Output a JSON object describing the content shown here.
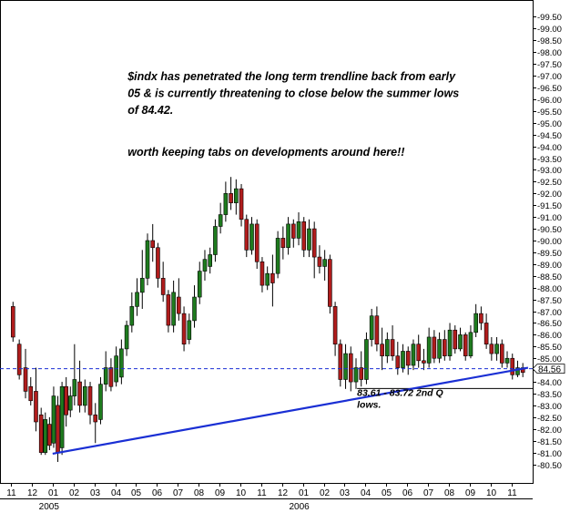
{
  "chart_data": {
    "type": "candlestick",
    "title": "",
    "xlabel": "",
    "ylabel": "",
    "ylim": [
      80.25,
      99.75
    ],
    "y_tick_step": 0.5,
    "y_axis_side": "right",
    "grid": false,
    "colors": {
      "up_candle": "#1e7b1e",
      "down_candle": "#b01c1c",
      "trendline": "#1a2fd4",
      "current_level_line": "#1a2fd4",
      "support_line": "#000000",
      "current_value_marker": "#000000"
    },
    "month_labels": [
      "11",
      "12",
      "01",
      "02",
      "03",
      "04",
      "05",
      "06",
      "07",
      "08",
      "09",
      "10",
      "11",
      "12",
      "01",
      "02",
      "03",
      "04",
      "05",
      "06",
      "07",
      "08",
      "09",
      "10",
      "11"
    ],
    "year_labels": [
      {
        "label": "2005",
        "month_index": 2
      },
      {
        "label": "2006",
        "month_index": 14
      }
    ],
    "current_value": 84.56,
    "current_value_label": "84.56",
    "support_level": 83.72,
    "trendline": {
      "start": {
        "month_index": 2.0,
        "value": 80.95
      },
      "end": {
        "month_index": 24.8,
        "value": 84.6
      }
    },
    "annotations": [
      {
        "lines": [
          "$indx has penetrated the long term trendline back from early",
          "05 & is currently threatening to close below the summer lows",
          "of 84.42."
        ],
        "anchor": {
          "month_index": 5.6,
          "value": 96.8
        }
      },
      {
        "lines": [
          "worth keeping tabs on developments around here!!"
        ],
        "anchor": {
          "month_index": 5.6,
          "value": 93.6
        }
      },
      {
        "lines": [
          "83.61 - 83.72  2nd Q",
          "lows."
        ],
        "anchor": {
          "month_index": 16.6,
          "value": 83.4
        },
        "size": "small"
      }
    ],
    "candles": [
      {
        "m": 0.1,
        "o": 87.2,
        "h": 87.4,
        "c": 85.9,
        "l": 85.7
      },
      {
        "m": 0.4,
        "o": 85.6,
        "h": 85.8,
        "c": 84.3,
        "l": 84.1
      },
      {
        "m": 0.7,
        "o": 84.6,
        "h": 85.4,
        "c": 83.6,
        "l": 83.3
      },
      {
        "m": 0.95,
        "o": 83.8,
        "h": 84.2,
        "c": 83.2,
        "l": 83.0
      },
      {
        "m": 1.2,
        "o": 83.6,
        "h": 84.6,
        "c": 82.3,
        "l": 81.9
      },
      {
        "m": 1.45,
        "o": 82.6,
        "h": 82.9,
        "c": 81.0,
        "l": 80.9
      },
      {
        "m": 1.65,
        "o": 81.0,
        "h": 82.7,
        "c": 82.4,
        "l": 80.9
      },
      {
        "m": 1.85,
        "o": 82.2,
        "h": 82.5,
        "c": 81.3,
        "l": 81.1
      },
      {
        "m": 2.05,
        "o": 81.4,
        "h": 83.8,
        "c": 83.4,
        "l": 81.2
      },
      {
        "m": 2.25,
        "o": 83.0,
        "h": 83.4,
        "c": 81.0,
        "l": 80.6
      },
      {
        "m": 2.45,
        "o": 81.2,
        "h": 84.0,
        "c": 83.8,
        "l": 80.9
      },
      {
        "m": 2.65,
        "o": 83.8,
        "h": 84.2,
        "c": 82.6,
        "l": 82.1
      },
      {
        "m": 2.85,
        "o": 82.8,
        "h": 83.8,
        "c": 83.4,
        "l": 82.5
      },
      {
        "m": 3.05,
        "o": 83.4,
        "h": 85.6,
        "c": 84.1,
        "l": 83.0
      },
      {
        "m": 3.3,
        "o": 84.0,
        "h": 84.9,
        "c": 83.0,
        "l": 82.7
      },
      {
        "m": 3.55,
        "o": 83.0,
        "h": 84.1,
        "c": 83.8,
        "l": 82.7
      },
      {
        "m": 3.8,
        "o": 83.8,
        "h": 84.0,
        "c": 82.6,
        "l": 82.2
      },
      {
        "m": 4.05,
        "o": 82.6,
        "h": 83.1,
        "c": 82.3,
        "l": 81.4
      },
      {
        "m": 4.3,
        "o": 82.4,
        "h": 84.2,
        "c": 83.9,
        "l": 82.2
      },
      {
        "m": 4.55,
        "o": 83.9,
        "h": 85.3,
        "c": 84.6,
        "l": 83.6
      },
      {
        "m": 4.8,
        "o": 84.6,
        "h": 85.0,
        "c": 83.8,
        "l": 83.6
      },
      {
        "m": 5.05,
        "o": 84.0,
        "h": 85.5,
        "c": 85.1,
        "l": 83.8
      },
      {
        "m": 5.3,
        "o": 84.2,
        "h": 85.8,
        "c": 85.4,
        "l": 83.9
      },
      {
        "m": 5.55,
        "o": 85.4,
        "h": 86.6,
        "c": 86.4,
        "l": 85.1
      },
      {
        "m": 5.8,
        "o": 86.4,
        "h": 87.8,
        "c": 87.2,
        "l": 86.1
      },
      {
        "m": 6.05,
        "o": 87.2,
        "h": 88.4,
        "c": 87.8,
        "l": 86.8
      },
      {
        "m": 6.3,
        "o": 87.8,
        "h": 89.6,
        "c": 88.4,
        "l": 87.1
      },
      {
        "m": 6.55,
        "o": 88.4,
        "h": 90.3,
        "c": 90.0,
        "l": 88.1
      },
      {
        "m": 6.8,
        "o": 90.0,
        "h": 90.7,
        "c": 89.7,
        "l": 89.1
      },
      {
        "m": 7.05,
        "o": 89.7,
        "h": 89.9,
        "c": 88.4,
        "l": 88.0
      },
      {
        "m": 7.3,
        "o": 88.4,
        "h": 89.1,
        "c": 87.7,
        "l": 87.4
      },
      {
        "m": 7.55,
        "o": 87.7,
        "h": 87.9,
        "c": 86.4,
        "l": 86.1
      },
      {
        "m": 7.8,
        "o": 86.4,
        "h": 88.3,
        "c": 87.8,
        "l": 86.1
      },
      {
        "m": 8.05,
        "o": 87.6,
        "h": 88.4,
        "c": 86.9,
        "l": 86.6
      },
      {
        "m": 8.3,
        "o": 86.9,
        "h": 87.2,
        "c": 85.6,
        "l": 85.3
      },
      {
        "m": 8.55,
        "o": 85.8,
        "h": 86.9,
        "c": 86.6,
        "l": 85.6
      },
      {
        "m": 8.8,
        "o": 86.6,
        "h": 88.1,
        "c": 87.6,
        "l": 86.3
      },
      {
        "m": 9.05,
        "o": 87.6,
        "h": 89.1,
        "c": 88.7,
        "l": 87.3
      },
      {
        "m": 9.3,
        "o": 88.7,
        "h": 89.6,
        "c": 89.2,
        "l": 88.3
      },
      {
        "m": 9.55,
        "o": 88.9,
        "h": 89.7,
        "c": 89.4,
        "l": 88.6
      },
      {
        "m": 9.8,
        "o": 89.4,
        "h": 90.9,
        "c": 90.6,
        "l": 89.1
      },
      {
        "m": 10.05,
        "o": 90.6,
        "h": 91.6,
        "c": 91.1,
        "l": 90.3
      },
      {
        "m": 10.3,
        "o": 91.1,
        "h": 92.5,
        "c": 92.0,
        "l": 90.8
      },
      {
        "m": 10.55,
        "o": 92.0,
        "h": 92.7,
        "c": 91.6,
        "l": 91.3
      },
      {
        "m": 10.8,
        "o": 91.6,
        "h": 92.6,
        "c": 92.2,
        "l": 91.1
      },
      {
        "m": 11.05,
        "o": 92.2,
        "h": 92.4,
        "c": 90.9,
        "l": 90.6
      },
      {
        "m": 11.3,
        "o": 90.9,
        "h": 91.1,
        "c": 89.6,
        "l": 89.3
      },
      {
        "m": 11.55,
        "o": 89.6,
        "h": 91.0,
        "c": 90.7,
        "l": 89.4
      },
      {
        "m": 11.8,
        "o": 90.7,
        "h": 90.9,
        "c": 89.1,
        "l": 88.8
      },
      {
        "m": 12.05,
        "o": 89.1,
        "h": 89.3,
        "c": 88.1,
        "l": 87.8
      },
      {
        "m": 12.3,
        "o": 88.1,
        "h": 88.9,
        "c": 88.6,
        "l": 87.9
      },
      {
        "m": 12.55,
        "o": 88.6,
        "h": 89.4,
        "c": 88.2,
        "l": 87.2
      },
      {
        "m": 12.8,
        "o": 88.6,
        "h": 90.4,
        "c": 90.1,
        "l": 88.4
      },
      {
        "m": 13.05,
        "o": 90.1,
        "h": 90.6,
        "c": 89.7,
        "l": 89.2
      },
      {
        "m": 13.3,
        "o": 89.7,
        "h": 91.0,
        "c": 90.7,
        "l": 89.4
      },
      {
        "m": 13.55,
        "o": 90.7,
        "h": 90.9,
        "c": 90.1,
        "l": 89.7
      },
      {
        "m": 13.8,
        "o": 90.1,
        "h": 91.2,
        "c": 90.8,
        "l": 89.8
      },
      {
        "m": 14.05,
        "o": 90.8,
        "h": 91.0,
        "c": 89.6,
        "l": 89.3
      },
      {
        "m": 14.3,
        "o": 89.6,
        "h": 90.9,
        "c": 90.5,
        "l": 89.3
      },
      {
        "m": 14.55,
        "o": 90.5,
        "h": 90.8,
        "c": 89.3,
        "l": 88.4
      },
      {
        "m": 14.8,
        "o": 89.3,
        "h": 89.8,
        "c": 88.9,
        "l": 88.6
      },
      {
        "m": 15.05,
        "o": 88.9,
        "h": 89.6,
        "c": 89.2,
        "l": 88.3
      },
      {
        "m": 15.3,
        "o": 89.2,
        "h": 89.4,
        "c": 87.2,
        "l": 86.9
      },
      {
        "m": 15.55,
        "o": 87.2,
        "h": 87.4,
        "c": 85.6,
        "l": 85.1
      },
      {
        "m": 15.8,
        "o": 85.6,
        "h": 85.8,
        "c": 84.1,
        "l": 83.8
      },
      {
        "m": 16.05,
        "o": 84.1,
        "h": 85.6,
        "c": 85.2,
        "l": 83.7
      },
      {
        "m": 16.3,
        "o": 85.2,
        "h": 85.5,
        "c": 84.0,
        "l": 83.6
      },
      {
        "m": 16.55,
        "o": 84.0,
        "h": 85.0,
        "c": 84.6,
        "l": 83.7
      },
      {
        "m": 16.8,
        "o": 84.6,
        "h": 85.3,
        "c": 84.1,
        "l": 83.8
      },
      {
        "m": 17.05,
        "o": 84.1,
        "h": 86.1,
        "c": 85.8,
        "l": 83.9
      },
      {
        "m": 17.3,
        "o": 85.8,
        "h": 87.1,
        "c": 86.8,
        "l": 85.5
      },
      {
        "m": 17.55,
        "o": 86.8,
        "h": 87.2,
        "c": 85.6,
        "l": 85.3
      },
      {
        "m": 17.8,
        "o": 85.6,
        "h": 86.3,
        "c": 85.1,
        "l": 84.5
      },
      {
        "m": 18.05,
        "o": 85.1,
        "h": 86.1,
        "c": 85.8,
        "l": 84.8
      },
      {
        "m": 18.3,
        "o": 85.8,
        "h": 86.4,
        "c": 85.1,
        "l": 84.9
      },
      {
        "m": 18.55,
        "o": 85.1,
        "h": 85.7,
        "c": 84.6,
        "l": 84.3
      },
      {
        "m": 18.8,
        "o": 84.6,
        "h": 85.6,
        "c": 85.3,
        "l": 84.4
      },
      {
        "m": 19.05,
        "o": 85.3,
        "h": 85.5,
        "c": 84.7,
        "l": 84.3
      },
      {
        "m": 19.3,
        "o": 84.7,
        "h": 85.8,
        "c": 85.6,
        "l": 84.5
      },
      {
        "m": 19.55,
        "o": 85.6,
        "h": 86.0,
        "c": 84.9,
        "l": 84.6
      },
      {
        "m": 19.8,
        "o": 84.9,
        "h": 85.4,
        "c": 84.8,
        "l": 84.5
      },
      {
        "m": 20.05,
        "o": 84.8,
        "h": 86.3,
        "c": 85.9,
        "l": 84.6
      },
      {
        "m": 20.3,
        "o": 85.9,
        "h": 86.2,
        "c": 85.0,
        "l": 84.8
      },
      {
        "m": 20.55,
        "o": 85.0,
        "h": 86.1,
        "c": 85.8,
        "l": 84.8
      },
      {
        "m": 20.8,
        "o": 85.8,
        "h": 86.2,
        "c": 85.1,
        "l": 84.9
      },
      {
        "m": 21.05,
        "o": 85.1,
        "h": 86.5,
        "c": 86.2,
        "l": 84.9
      },
      {
        "m": 21.3,
        "o": 86.2,
        "h": 86.4,
        "c": 85.4,
        "l": 85.2
      },
      {
        "m": 21.55,
        "o": 85.4,
        "h": 86.3,
        "c": 86.0,
        "l": 85.3
      },
      {
        "m": 21.8,
        "o": 86.0,
        "h": 86.1,
        "c": 85.1,
        "l": 84.9
      },
      {
        "m": 22.05,
        "o": 85.1,
        "h": 86.4,
        "c": 86.1,
        "l": 85.0
      },
      {
        "m": 22.3,
        "o": 86.1,
        "h": 87.3,
        "c": 86.9,
        "l": 85.9
      },
      {
        "m": 22.55,
        "o": 86.9,
        "h": 87.2,
        "c": 86.5,
        "l": 86.2
      },
      {
        "m": 22.8,
        "o": 86.5,
        "h": 86.9,
        "c": 85.6,
        "l": 85.4
      },
      {
        "m": 23.05,
        "o": 85.6,
        "h": 85.9,
        "c": 85.2,
        "l": 84.9
      },
      {
        "m": 23.3,
        "o": 85.2,
        "h": 85.9,
        "c": 85.6,
        "l": 84.9
      },
      {
        "m": 23.55,
        "o": 85.6,
        "h": 85.8,
        "c": 84.8,
        "l": 84.6
      },
      {
        "m": 23.8,
        "o": 84.8,
        "h": 85.3,
        "c": 85.0,
        "l": 84.6
      },
      {
        "m": 24.05,
        "o": 85.0,
        "h": 85.2,
        "c": 84.3,
        "l": 84.1
      },
      {
        "m": 24.3,
        "o": 84.3,
        "h": 84.9,
        "c": 84.6,
        "l": 84.2
      },
      {
        "m": 24.55,
        "o": 84.6,
        "h": 84.8,
        "c": 84.4,
        "l": 84.2
      }
    ]
  }
}
